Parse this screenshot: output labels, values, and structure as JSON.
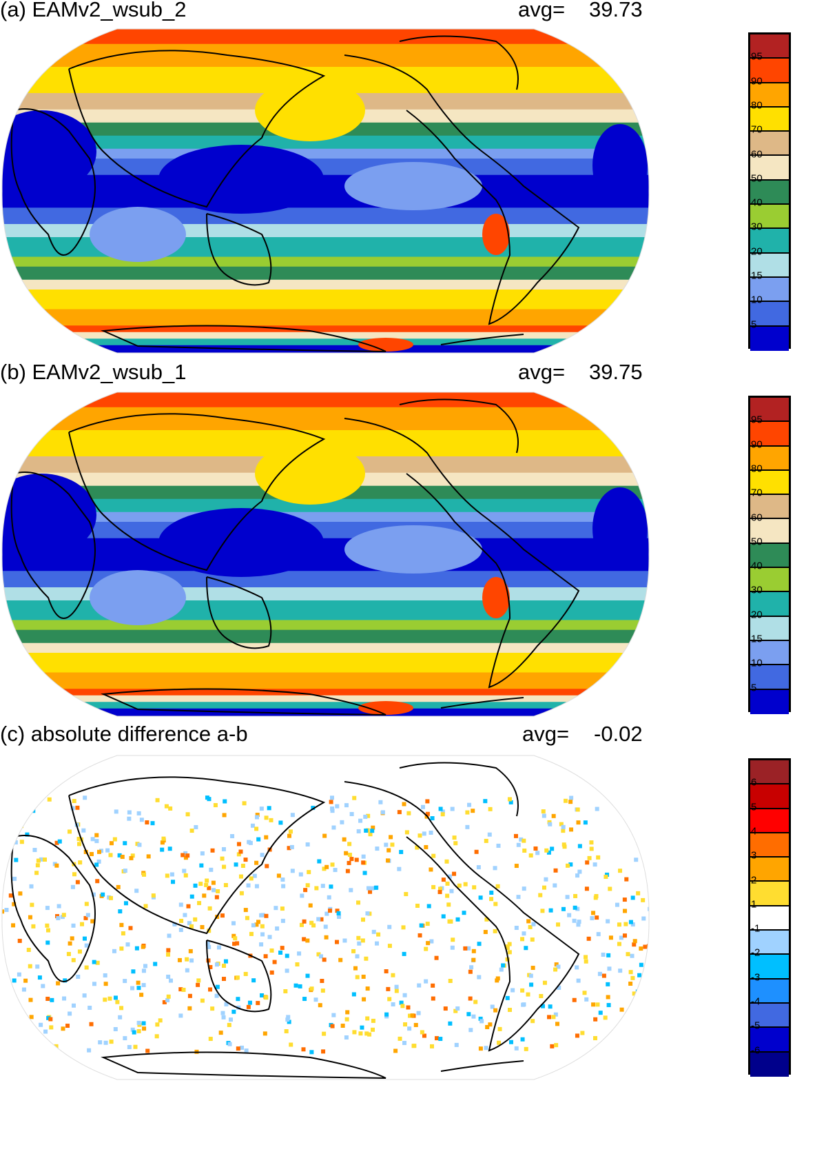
{
  "panels": [
    {
      "title": "(a) EAMv2_wsub_2",
      "avg_label": "avg=",
      "avg_value": "39.73",
      "colorbar": "abs"
    },
    {
      "title": "(b) EAMv2_wsub_1",
      "avg_label": "avg=",
      "avg_value": "39.75",
      "colorbar": "abs"
    },
    {
      "title": "(c) absolute difference a-b",
      "avg_label": "avg=",
      "avg_value": "-0.02",
      "colorbar": "diff"
    }
  ],
  "colorbars": {
    "abs": {
      "labels": [
        "95",
        "90",
        "80",
        "70",
        "60",
        "50",
        "40",
        "30",
        "20",
        "15",
        "10",
        "5"
      ],
      "colors": [
        "#b22222",
        "#ff4500",
        "#ffa500",
        "#ffe000",
        "#deb887",
        "#f5e6c2",
        "#2e8b57",
        "#9acd32",
        "#20b2aa",
        "#b0dfe6",
        "#7b9ff0",
        "#4169e1",
        "#0000cd"
      ]
    },
    "diff": {
      "labels": [
        "6",
        "5",
        "4",
        "3",
        "2",
        "1",
        "-1",
        "-2",
        "-3",
        "-4",
        "-5",
        "-6"
      ],
      "colors": [
        "#9b2226",
        "#c80000",
        "#ff0000",
        "#ff6d00",
        "#ffa500",
        "#ffdd30",
        "#ffffff",
        "#a0d2ff",
        "#00bfff",
        "#1e90ff",
        "#4169e1",
        "#0000cd",
        "#00008b"
      ]
    }
  }
}
